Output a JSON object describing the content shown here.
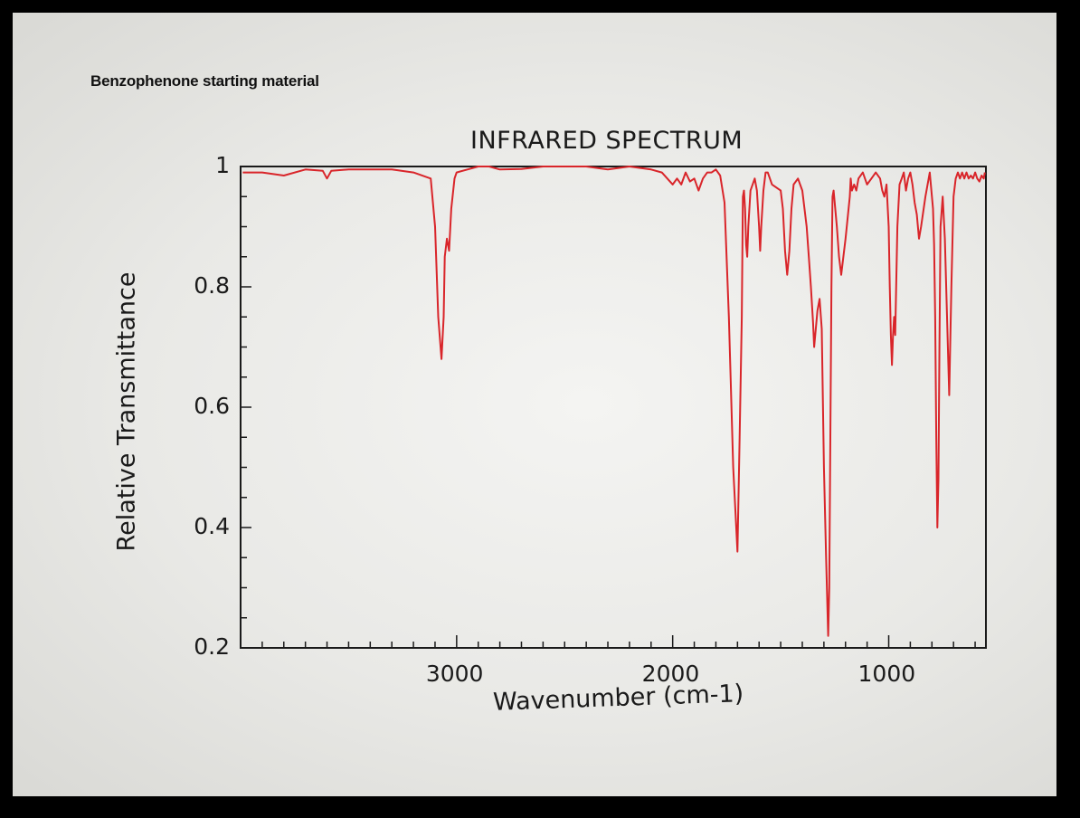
{
  "page": {
    "heading": "Benzophenone starting material"
  },
  "chart_data": {
    "type": "line",
    "title": "INFRARED SPECTRUM",
    "xlabel": "Wavenumber (cm-1)",
    "ylabel": "Relative Transmittance",
    "xlim": [
      4000,
      550
    ],
    "ylim": [
      0.2,
      1.0
    ],
    "x_ticks": [
      {
        "value": 3000,
        "label": "3000"
      },
      {
        "value": 2000,
        "label": "2000"
      },
      {
        "value": 1000,
        "label": "1000"
      }
    ],
    "y_ticks": [
      {
        "value": 1.0,
        "label": "1"
      },
      {
        "value": 0.8,
        "label": "0.8"
      },
      {
        "value": 0.6,
        "label": "0.6"
      },
      {
        "value": 0.4,
        "label": "0.4"
      },
      {
        "value": 0.2,
        "label": "0.2"
      }
    ],
    "series": [
      {
        "color": "#d9252a",
        "x": [
          3990,
          3900,
          3800,
          3700,
          3620,
          3600,
          3580,
          3500,
          3400,
          3300,
          3200,
          3120,
          3100,
          3085,
          3070,
          3060,
          3055,
          3045,
          3035,
          3025,
          3010,
          3000,
          2950,
          2900,
          2850,
          2800,
          2700,
          2600,
          2500,
          2400,
          2300,
          2200,
          2100,
          2050,
          2000,
          1980,
          1960,
          1940,
          1920,
          1900,
          1880,
          1860,
          1840,
          1820,
          1800,
          1780,
          1760,
          1740,
          1720,
          1700,
          1690,
          1680,
          1675,
          1670,
          1665,
          1660,
          1655,
          1650,
          1640,
          1620,
          1610,
          1600,
          1595,
          1590,
          1580,
          1570,
          1560,
          1540,
          1500,
          1490,
          1480,
          1470,
          1460,
          1450,
          1440,
          1420,
          1400,
          1380,
          1370,
          1360,
          1350,
          1345,
          1340,
          1330,
          1320,
          1310,
          1300,
          1290,
          1280,
          1275,
          1270,
          1265,
          1260,
          1255,
          1250,
          1240,
          1230,
          1220,
          1200,
          1180,
          1176,
          1170,
          1160,
          1150,
          1140,
          1120,
          1100,
          1080,
          1060,
          1040,
          1030,
          1020,
          1010,
          1000,
          995,
          990,
          985,
          980,
          975,
          970,
          960,
          950,
          940,
          930,
          920,
          910,
          900,
          890,
          880,
          870,
          860,
          850,
          830,
          820,
          810,
          800,
          795,
          790,
          785,
          780,
          775,
          770,
          765,
          760,
          750,
          740,
          730,
          720,
          710,
          700,
          690,
          680,
          670,
          660,
          650,
          640,
          630,
          620,
          610,
          600,
          590,
          580,
          570,
          560,
          555
        ],
        "y": [
          0.99,
          0.99,
          0.985,
          0.995,
          0.993,
          0.98,
          0.993,
          0.995,
          0.995,
          0.995,
          0.99,
          0.98,
          0.9,
          0.75,
          0.68,
          0.75,
          0.85,
          0.88,
          0.86,
          0.93,
          0.98,
          0.99,
          0.995,
          1.0,
          1.0,
          0.995,
          0.996,
          1.0,
          1.0,
          1.0,
          0.995,
          1.0,
          0.995,
          0.99,
          0.97,
          0.98,
          0.97,
          0.99,
          0.975,
          0.98,
          0.96,
          0.98,
          0.99,
          0.99,
          0.995,
          0.985,
          0.94,
          0.75,
          0.5,
          0.36,
          0.55,
          0.75,
          0.95,
          0.96,
          0.93,
          0.87,
          0.85,
          0.9,
          0.96,
          0.98,
          0.96,
          0.9,
          0.86,
          0.9,
          0.96,
          0.99,
          0.99,
          0.97,
          0.96,
          0.93,
          0.86,
          0.82,
          0.86,
          0.93,
          0.97,
          0.98,
          0.96,
          0.9,
          0.85,
          0.8,
          0.74,
          0.7,
          0.72,
          0.76,
          0.78,
          0.73,
          0.5,
          0.35,
          0.22,
          0.3,
          0.55,
          0.8,
          0.95,
          0.96,
          0.94,
          0.9,
          0.85,
          0.82,
          0.88,
          0.95,
          0.98,
          0.96,
          0.97,
          0.96,
          0.98,
          0.99,
          0.97,
          0.98,
          0.99,
          0.98,
          0.96,
          0.95,
          0.97,
          0.9,
          0.8,
          0.72,
          0.67,
          0.72,
          0.75,
          0.72,
          0.9,
          0.97,
          0.98,
          0.99,
          0.96,
          0.98,
          0.99,
          0.97,
          0.94,
          0.92,
          0.88,
          0.9,
          0.95,
          0.97,
          0.99,
          0.95,
          0.93,
          0.87,
          0.75,
          0.55,
          0.4,
          0.48,
          0.7,
          0.9,
          0.95,
          0.88,
          0.75,
          0.62,
          0.8,
          0.95,
          0.98,
          0.99,
          0.98,
          0.99,
          0.98,
          0.99,
          0.98,
          0.985,
          0.98,
          0.99,
          0.98,
          0.975,
          0.985,
          0.98,
          0.99
        ]
      }
    ],
    "grid": false
  }
}
